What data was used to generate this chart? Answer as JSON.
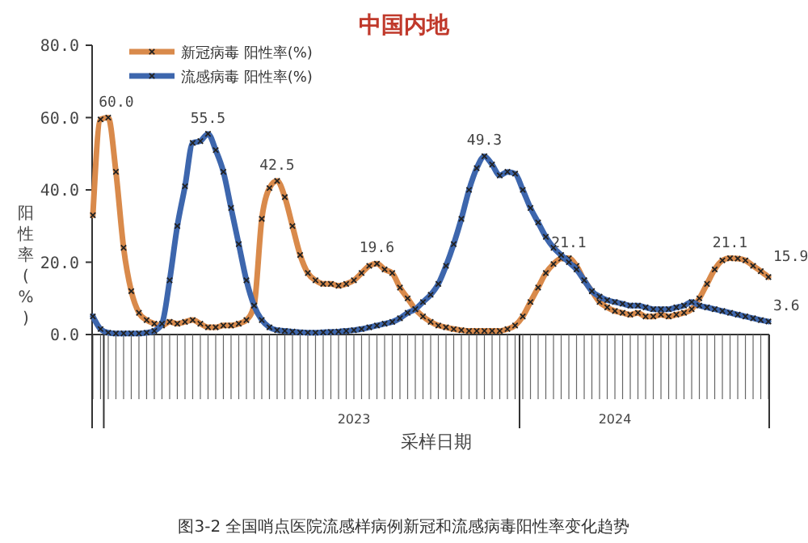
{
  "chart_data": {
    "type": "line",
    "title": "中国内地",
    "ylabel": "阳性率(%)",
    "xlabel": "采样日期",
    "categories": [
      null,
      null,
      null,
      null,
      null,
      null,
      null,
      null,
      null,
      null,
      null,
      null,
      null,
      null,
      null,
      null,
      null,
      null,
      null,
      null,
      null,
      null,
      null,
      null,
      null,
      null,
      null,
      null,
      null,
      null,
      null,
      null,
      null,
      null,
      null,
      null,
      null,
      null,
      null,
      null,
      null,
      null,
      null,
      null,
      null,
      null,
      null,
      null,
      null,
      null,
      null,
      null,
      null,
      null,
      null,
      null,
      null,
      null,
      null,
      null,
      null,
      null,
      null,
      null,
      null,
      null,
      null,
      null,
      null,
      null,
      null,
      null,
      null,
      null,
      null,
      null,
      null,
      null,
      null,
      null,
      null,
      null,
      null,
      null,
      null,
      null,
      null,
      null,
      null
    ],
    "series": [
      {
        "name": "新冠病毒 阳性率(%)",
        "color": "#d98a4b",
        "values": [
          33,
          59.5,
          60.0,
          45,
          24,
          12,
          6,
          4,
          3,
          2.5,
          3.5,
          3,
          3.5,
          4,
          3,
          2,
          2,
          2.5,
          2.5,
          3,
          4,
          8,
          32,
          40.5,
          42.5,
          38,
          30,
          22,
          17,
          15,
          14,
          14,
          13.5,
          14,
          15,
          17,
          19,
          19.6,
          18,
          17,
          13,
          10,
          7,
          5,
          3.5,
          2.5,
          2,
          1.5,
          1.2,
          1,
          1,
          1,
          1,
          1,
          1.5,
          2.5,
          5,
          9,
          13,
          17,
          19.5,
          21,
          21.1,
          19,
          15,
          12,
          9,
          7.5,
          6.5,
          6,
          5.5,
          6,
          5,
          5,
          5.5,
          5,
          5.5,
          6,
          7,
          10,
          14,
          18,
          20.5,
          21.1,
          21,
          20.5,
          19,
          17.5,
          15.9
        ],
        "value_labels": [
          null,
          null,
          "60.0",
          null,
          null,
          null,
          null,
          null,
          null,
          null,
          null,
          null,
          null,
          null,
          null,
          null,
          null,
          null,
          null,
          null,
          null,
          null,
          null,
          null,
          "42.5",
          null,
          null,
          null,
          null,
          null,
          null,
          null,
          null,
          null,
          null,
          null,
          null,
          "19.6",
          null,
          null,
          null,
          null,
          null,
          null,
          null,
          null,
          null,
          null,
          null,
          null,
          null,
          null,
          null,
          null,
          null,
          null,
          null,
          null,
          null,
          null,
          null,
          null,
          "21.1",
          null,
          null,
          null,
          null,
          null,
          null,
          null,
          null,
          null,
          null,
          null,
          null,
          null,
          null,
          null,
          null,
          null,
          null,
          null,
          null,
          "21.1",
          null,
          null,
          null,
          null,
          "15.9"
        ]
      },
      {
        "name": "流感病毒 阳性率(%)",
        "color": "#3d66ad",
        "values": [
          5,
          1.5,
          0.5,
          0.3,
          0.3,
          0.3,
          0.3,
          0.5,
          1,
          3,
          15,
          30,
          41,
          53,
          53.5,
          55.5,
          51,
          45,
          35,
          25,
          15,
          8,
          4,
          2,
          1.2,
          1,
          0.8,
          0.6,
          0.5,
          0.5,
          0.6,
          0.7,
          0.8,
          1,
          1.2,
          1.5,
          2,
          2.5,
          3,
          3.5,
          4.5,
          6,
          7,
          9,
          11,
          14,
          19,
          25,
          32,
          40,
          46,
          49.3,
          47,
          44,
          45,
          44.5,
          40,
          35,
          31,
          27,
          24,
          22,
          20,
          18,
          15,
          12,
          10.5,
          9.5,
          9,
          8.5,
          8,
          8,
          7.5,
          7,
          7,
          7,
          7.5,
          8,
          9,
          8,
          7.5,
          7,
          6.5,
          6,
          5.5,
          5,
          4.5,
          4,
          3.6
        ],
        "value_labels": [
          null,
          null,
          null,
          null,
          null,
          null,
          null,
          null,
          null,
          null,
          null,
          null,
          null,
          null,
          null,
          "55.5",
          null,
          null,
          null,
          null,
          null,
          null,
          null,
          null,
          null,
          null,
          null,
          null,
          null,
          null,
          null,
          null,
          null,
          null,
          null,
          null,
          null,
          null,
          null,
          null,
          null,
          null,
          null,
          null,
          null,
          null,
          null,
          null,
          null,
          null,
          null,
          "49.3",
          null,
          null,
          null,
          null,
          null,
          null,
          null,
          null,
          null,
          null,
          null,
          null,
          null,
          null,
          null,
          null,
          null,
          null,
          null,
          null,
          null,
          null,
          null,
          null,
          null,
          null,
          null,
          null,
          null,
          null,
          null,
          null,
          null,
          null,
          null,
          null,
          "3.6"
        ]
      }
    ],
    "ylim": [
      0,
      80
    ],
    "yticks": [
      {
        "value": 0,
        "label": "0.0"
      },
      {
        "value": 20,
        "label": "20.0"
      },
      {
        "value": 40,
        "label": "40.0"
      },
      {
        "value": 60,
        "label": "60.0"
      },
      {
        "value": 80,
        "label": "80.0"
      }
    ],
    "grid": false,
    "legend": "top left",
    "marker": "cross",
    "line_style": "solid",
    "annotations": [
      "2023",
      "2024",
      "图3-2 全国哨点医院流感样病例新冠和流感病毒阳性率变化趋势"
    ]
  }
}
